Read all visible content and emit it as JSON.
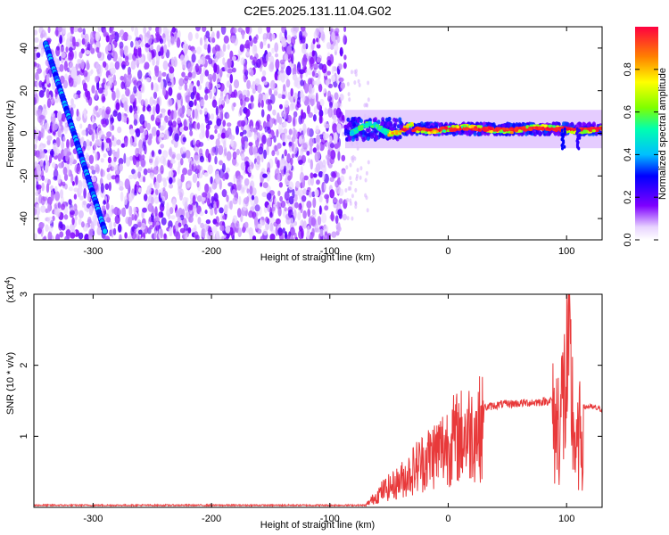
{
  "title": "C2E5.2025.131.11.04.G02",
  "chart_data": [
    {
      "type": "heatmap",
      "xlabel": "Height of straight line (km)",
      "ylabel": "Frequency (Hz)",
      "xlim": [
        -350,
        130
      ],
      "ylim": [
        -50,
        50
      ],
      "x_ticks": [
        "-300",
        "-200",
        "-100",
        "0",
        "100"
      ],
      "y_ticks": [
        "40",
        "20",
        "0",
        "-20",
        "-40"
      ],
      "colorbar": {
        "label": "Normalized spectral amplitude",
        "range": [
          0,
          1
        ],
        "ticks": [
          "0.0",
          "0.2",
          "0.4",
          "0.6",
          "0.8"
        ]
      },
      "features": {
        "noise_region_x": [
          -350,
          -87
        ],
        "diagonal_track": {
          "x": [
            -340,
            -290
          ],
          "y": [
            42,
            -46
          ]
        },
        "signal_band_x": [
          -87,
          130
        ],
        "signal_band_y": 2
      }
    },
    {
      "type": "line",
      "xlabel": "Height of straight line (km)",
      "ylabel": "SNR (10 * v/v)",
      "y_multiplier": "(x10",
      "y_multiplier_exp": "4",
      "y_multiplier_close": ")",
      "xlim": [
        -350,
        130
      ],
      "ylim": [
        0,
        30000
      ],
      "x_ticks": [
        "-300",
        "-200",
        "-100",
        "0",
        "100"
      ],
      "y_ticks": [
        "3",
        "2",
        "1"
      ],
      "color": "#e8393a",
      "profile": {
        "x": [
          -350,
          -70,
          -65,
          -55,
          -45,
          -35,
          -25,
          -15,
          -5,
          5,
          15,
          25,
          35,
          45,
          55,
          65,
          75,
          85,
          92,
          98,
          102,
          108,
          112,
          118,
          130
        ],
        "y": [
          300,
          300,
          1200,
          3000,
          4000,
          5500,
          7500,
          9000,
          10500,
          12000,
          13000,
          13800,
          14200,
          14500,
          14600,
          14700,
          14800,
          15000,
          15200,
          20000,
          26000,
          9000,
          14000,
          14200,
          13800
        ]
      }
    }
  ]
}
